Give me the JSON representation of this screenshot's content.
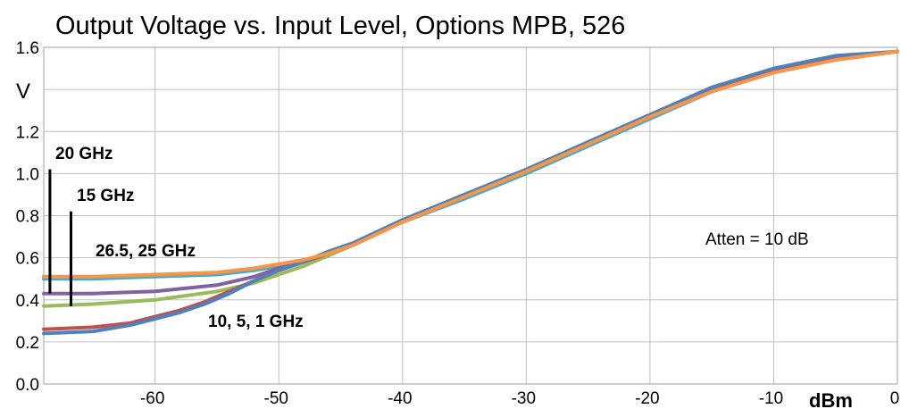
{
  "chart_data": {
    "type": "line",
    "title": "Output Voltage vs.  Input Level, Options MPB, 526",
    "xlabel": "dBm",
    "ylabel": "V",
    "xlim": [
      -69,
      0
    ],
    "ylim": [
      0,
      1.6
    ],
    "x_ticks": [
      -60,
      -50,
      -40,
      -30,
      -20,
      -10,
      0
    ],
    "x_tick_labels": [
      "-60",
      "-50",
      "-40",
      "-30",
      "-20",
      "-10",
      "0"
    ],
    "y_ticks": [
      0,
      0.2,
      0.4,
      0.6,
      0.8,
      1.0,
      1.2,
      1.4,
      1.6
    ],
    "y_tick_labels": [
      "0.0",
      "0.2",
      "0.4",
      "0.6",
      "0.8",
      "1.0",
      "1.2",
      "",
      "1.6"
    ],
    "grid": true,
    "legend": "none",
    "series": [
      {
        "color": "#4bacc6",
        "x": [
          -69,
          -65,
          -60,
          -55,
          -52,
          -50,
          -48,
          -46,
          -44,
          -40,
          -35,
          -30,
          -25,
          -20,
          -15,
          -10,
          -5,
          0
        ],
        "y": [
          0.5,
          0.5,
          0.51,
          0.52,
          0.54,
          0.56,
          0.58,
          0.62,
          0.66,
          0.77,
          0.88,
          1.0,
          1.13,
          1.26,
          1.39,
          1.48,
          1.54,
          1.58
        ]
      },
      {
        "color": "#8064a2",
        "x": [
          -69,
          -65,
          -60,
          -55,
          -52,
          -50,
          -48,
          -46,
          -44,
          -40,
          -35,
          -30,
          -25,
          -20,
          -15,
          -10,
          -5,
          0
        ],
        "y": [
          0.43,
          0.43,
          0.44,
          0.47,
          0.51,
          0.55,
          0.58,
          0.62,
          0.66,
          0.77,
          0.89,
          1.01,
          1.14,
          1.27,
          1.4,
          1.49,
          1.55,
          1.58
        ]
      },
      {
        "color": "#9bbb59",
        "x": [
          -69,
          -65,
          -60,
          -55,
          -52,
          -50,
          -48,
          -46,
          -44,
          -40,
          -35,
          -30,
          -25,
          -20,
          -15,
          -10,
          -5,
          0
        ],
        "y": [
          0.37,
          0.38,
          0.4,
          0.44,
          0.48,
          0.52,
          0.56,
          0.61,
          0.66,
          0.77,
          0.89,
          1.01,
          1.14,
          1.27,
          1.4,
          1.49,
          1.55,
          1.58
        ]
      },
      {
        "color": "#c0504d",
        "x": [
          -69,
          -65,
          -62,
          -60,
          -58,
          -56,
          -54,
          -52,
          -50,
          -48,
          -46,
          -44,
          -40,
          -35,
          -30,
          -25,
          -20,
          -15,
          -10,
          -5,
          0
        ],
        "y": [
          0.26,
          0.27,
          0.29,
          0.32,
          0.35,
          0.39,
          0.44,
          0.49,
          0.54,
          0.58,
          0.62,
          0.66,
          0.77,
          0.89,
          1.01,
          1.14,
          1.27,
          1.4,
          1.49,
          1.55,
          1.58
        ]
      },
      {
        "color": "#4f81bd",
        "x": [
          -69,
          -65,
          -62,
          -60,
          -58,
          -56,
          -54,
          -52,
          -50,
          -48,
          -46,
          -44,
          -40,
          -35,
          -30,
          -25,
          -20,
          -15,
          -10,
          -5,
          0
        ],
        "y": [
          0.24,
          0.25,
          0.28,
          0.31,
          0.34,
          0.38,
          0.43,
          0.49,
          0.54,
          0.58,
          0.63,
          0.67,
          0.78,
          0.9,
          1.02,
          1.15,
          1.28,
          1.41,
          1.5,
          1.56,
          1.58
        ]
      },
      {
        "color": "#f79646",
        "x": [
          -69,
          -65,
          -60,
          -55,
          -52,
          -50,
          -48,
          -46,
          -44,
          -40,
          -35,
          -30,
          -25,
          -20,
          -15,
          -10,
          -5,
          0
        ],
        "y": [
          0.51,
          0.51,
          0.52,
          0.53,
          0.55,
          0.57,
          0.59,
          0.62,
          0.66,
          0.77,
          0.89,
          1.01,
          1.14,
          1.27,
          1.39,
          1.48,
          1.54,
          1.58
        ]
      }
    ],
    "annotations": [
      {
        "id": "ann-20ghz",
        "text": "20 GHz",
        "style": "bold"
      },
      {
        "id": "ann-15ghz",
        "text": "15 GHz",
        "style": "bold"
      },
      {
        "id": "ann-265ghz",
        "text": "26.5, 25 GHz",
        "style": "bold"
      },
      {
        "id": "ann-low",
        "text": "10, 5, 1 GHz",
        "style": "bold"
      },
      {
        "id": "ann-atten",
        "text": "Atten = 10 dB",
        "style": "plain"
      }
    ],
    "marker_lines": [
      {
        "x": -68.5,
        "y_from": 1.02,
        "y_to": 0.43
      },
      {
        "x": -66.8,
        "y_from": 0.82,
        "y_to": 0.37
      }
    ]
  }
}
